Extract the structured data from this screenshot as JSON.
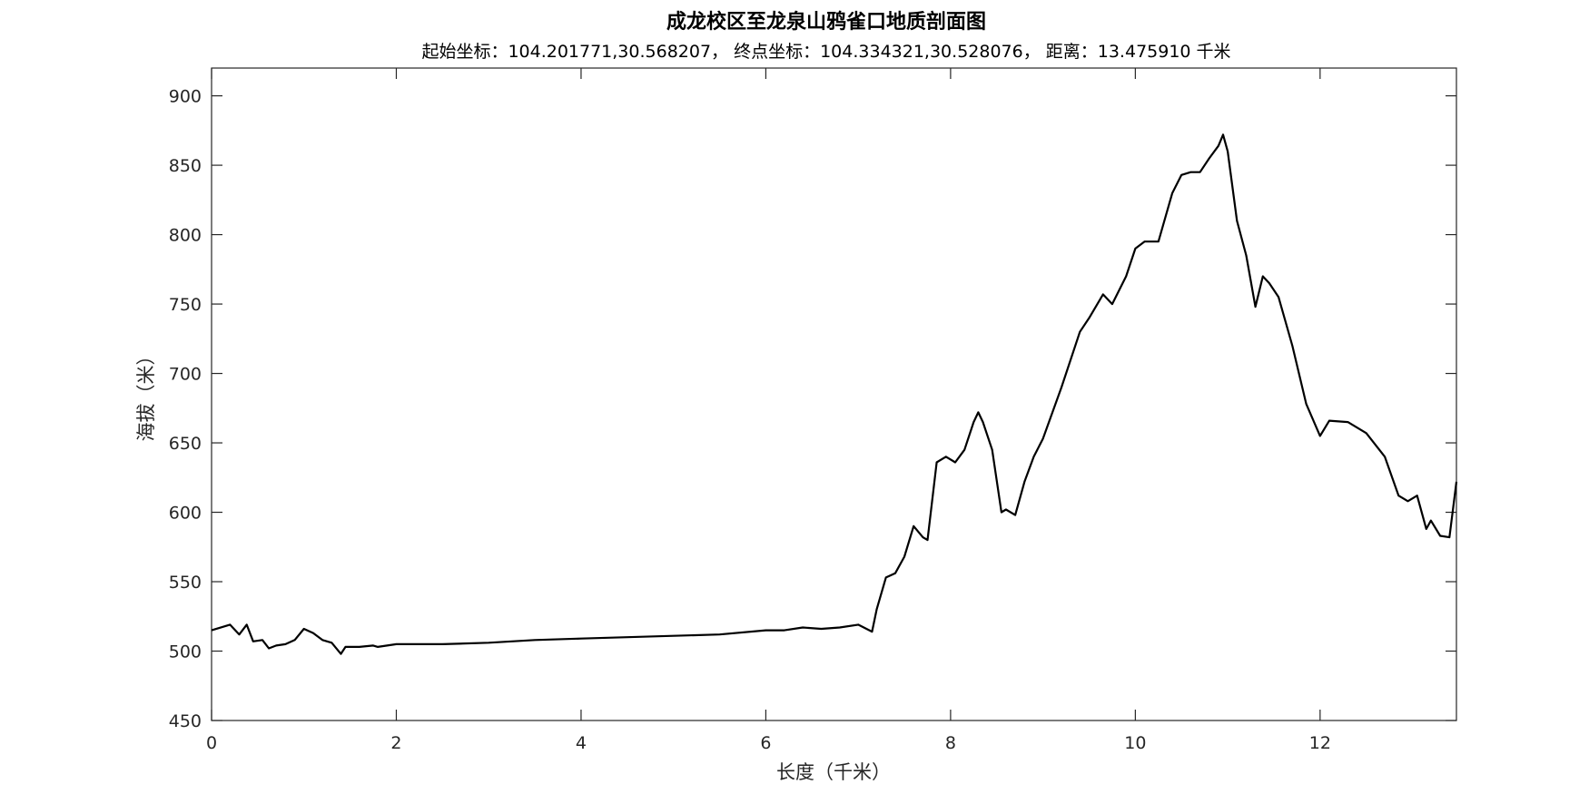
{
  "chart_data": {
    "type": "line",
    "title": "成龙校区至龙泉山鸦雀口地质剖面图",
    "subtitle": "起始坐标：104.201771,30.568207， 终点坐标：104.334321,30.528076， 距离：13.475910 千米",
    "xlabel": "长度（千米）",
    "ylabel": "海拔（米）",
    "xlim": [
      0,
      13.47591
    ],
    "ylim": [
      450,
      920
    ],
    "xticks": [
      0,
      2,
      4,
      6,
      8,
      10,
      12
    ],
    "yticks": [
      450,
      500,
      550,
      600,
      650,
      700,
      750,
      800,
      850,
      900
    ],
    "grid": false,
    "line_color": "#000000",
    "x": [
      0,
      0.2,
      0.3,
      0.38,
      0.45,
      0.55,
      0.62,
      0.7,
      0.8,
      0.9,
      1.0,
      1.1,
      1.2,
      1.3,
      1.4,
      1.45,
      1.6,
      1.75,
      1.8,
      2.0,
      2.5,
      3.0,
      3.5,
      4.0,
      4.5,
      5.0,
      5.5,
      6.0,
      6.2,
      6.4,
      6.6,
      6.8,
      7.0,
      7.15,
      7.2,
      7.3,
      7.4,
      7.5,
      7.6,
      7.7,
      7.75,
      7.85,
      7.95,
      8.05,
      8.15,
      8.25,
      8.3,
      8.35,
      8.45,
      8.55,
      8.6,
      8.7,
      8.8,
      8.9,
      9.0,
      9.2,
      9.4,
      9.5,
      9.65,
      9.75,
      9.9,
      10.0,
      10.1,
      10.25,
      10.4,
      10.5,
      10.6,
      10.7,
      10.8,
      10.9,
      10.95,
      11.0,
      11.1,
      11.2,
      11.3,
      11.38,
      11.45,
      11.55,
      11.7,
      11.85,
      12.0,
      12.1,
      12.3,
      12.5,
      12.7,
      12.85,
      12.95,
      13.05,
      13.15,
      13.2,
      13.3,
      13.4,
      13.47591
    ],
    "y": [
      515,
      519,
      512,
      519,
      507,
      508,
      502,
      504,
      505,
      508,
      516,
      513,
      508,
      506,
      498,
      503,
      503,
      504,
      503,
      505,
      505,
      506,
      508,
      509,
      510,
      511,
      512,
      515,
      515,
      517,
      516,
      517,
      519,
      514,
      530,
      553,
      556,
      568,
      590,
      582,
      580,
      636,
      640,
      636,
      645,
      665,
      672,
      665,
      645,
      600,
      602,
      598,
      622,
      640,
      653,
      690,
      730,
      740,
      757,
      750,
      770,
      790,
      795,
      795,
      830,
      843,
      845,
      845,
      855,
      864,
      872,
      860,
      810,
      785,
      748,
      770,
      765,
      755,
      720,
      678,
      655,
      666,
      665,
      657,
      640,
      612,
      608,
      612,
      588,
      594,
      583,
      582,
      622
    ]
  }
}
